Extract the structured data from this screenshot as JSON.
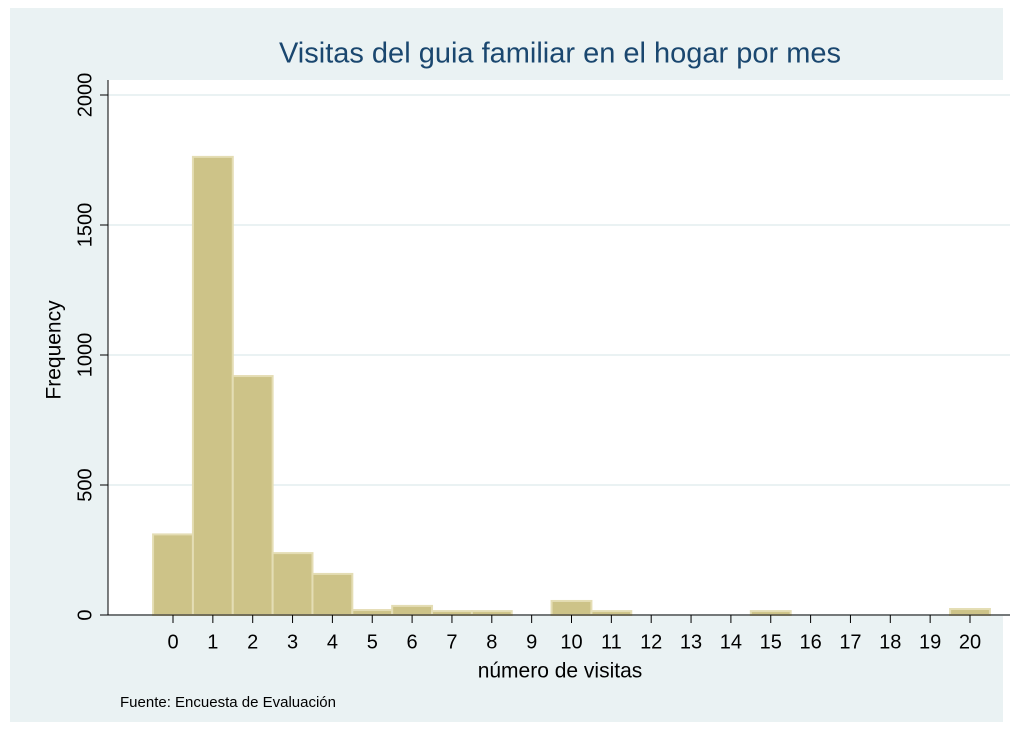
{
  "chart_data": {
    "type": "bar",
    "title": "Visitas del guia familiar en el hogar por mes",
    "x_label": "número de visitas",
    "y_label": "Frequency",
    "note": "Fuente: Encuesta de Evaluación",
    "categories": [
      "0",
      "1",
      "2",
      "3",
      "4",
      "5",
      "6",
      "7",
      "8",
      "9",
      "10",
      "11",
      "12",
      "13",
      "14",
      "15",
      "16",
      "17",
      "18",
      "19",
      "20"
    ],
    "values": [
      310,
      1762,
      919,
      238,
      158,
      19,
      35,
      15,
      15,
      0,
      54,
      15,
      0,
      0,
      0,
      15,
      0,
      0,
      0,
      0,
      23
    ],
    "color": "#cdc388",
    "ylim": [
      0,
      2000
    ],
    "yticks": [
      0,
      500,
      1000,
      1500,
      2000
    ],
    "grid": true
  }
}
